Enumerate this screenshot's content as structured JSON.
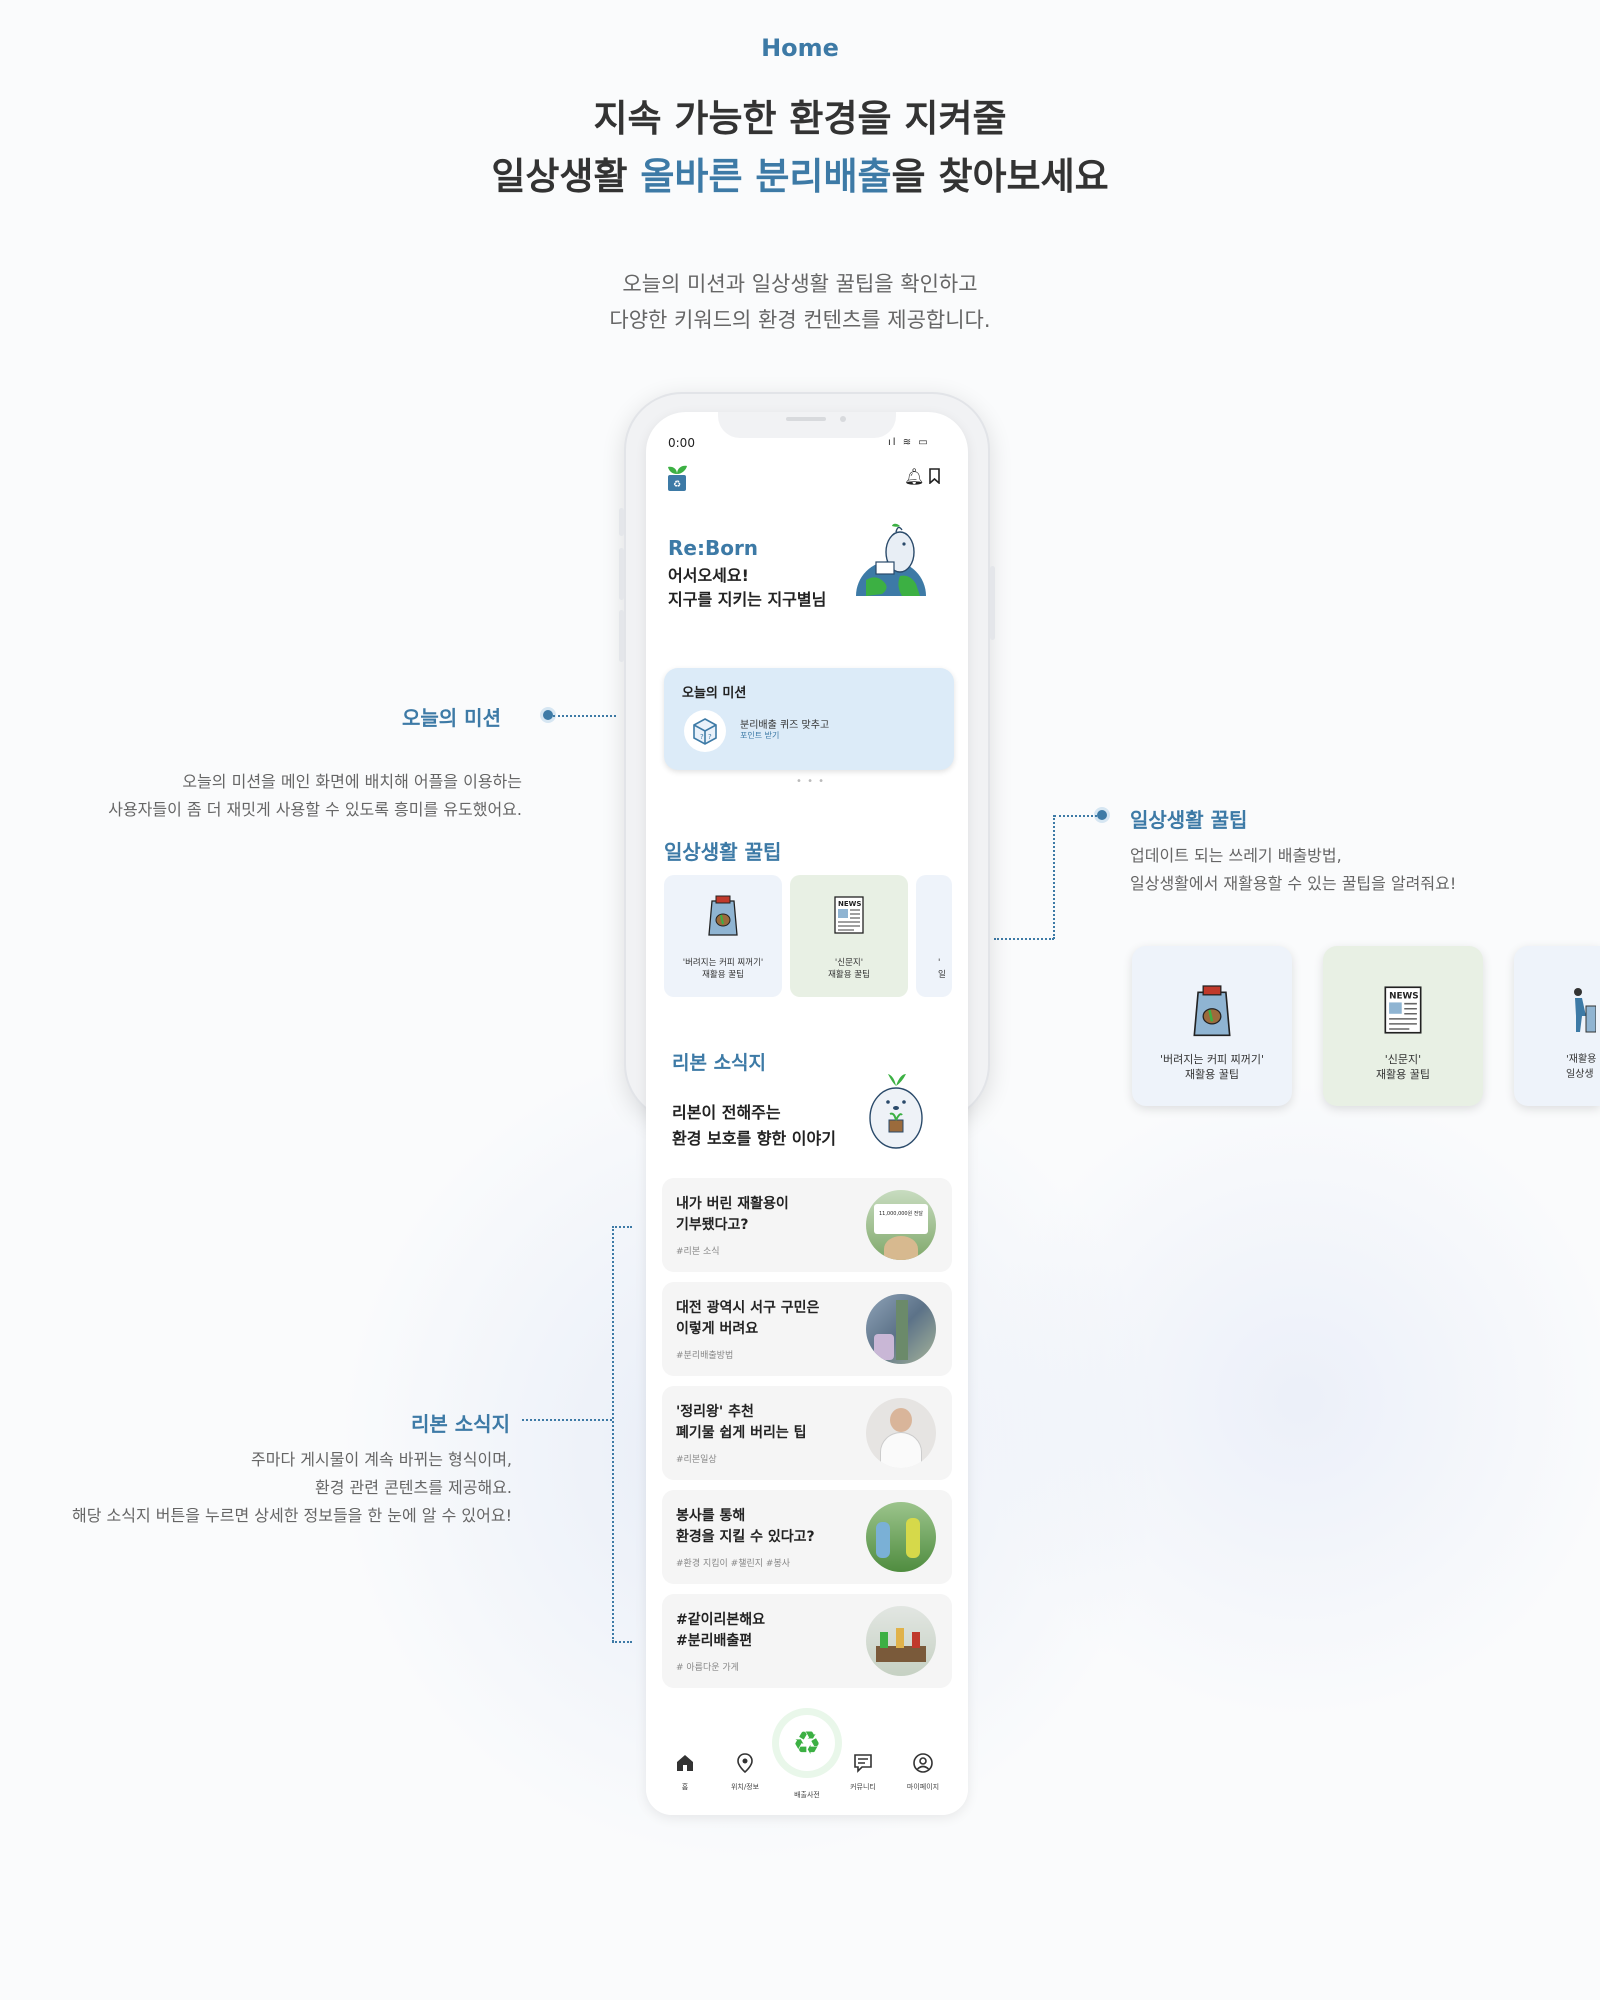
{
  "header": {
    "section_label": "Home",
    "headline_line1": "지속 가능한 환경을 지켜줄",
    "headline_line2_pre": "일상생활 ",
    "headline_line2_accent": "올바른 분리배출",
    "headline_line2_post": "을 찾아보세요",
    "sub_line1": "오늘의 미션과 일상생활 꿀팁을 확인하고",
    "sub_line2": "다양한 키워드의 환경 컨텐츠를 제공합니다."
  },
  "annotations": {
    "mission": {
      "title": "오늘의 미션",
      "desc_line1": "오늘의 미션을 메인 화면에 배치해 어플을 이용하는",
      "desc_line2": "사용자들이 좀 더 재밋게 사용할 수 있도록 흥미를 유도했어요."
    },
    "tips": {
      "title": "일상생활 꿀팁",
      "desc_line1": "업데이트 되는 쓰레기 배출방법,",
      "desc_line2": "일상생활에서  재활용할 수 있는 꿀팁을 알려줘요!"
    },
    "news": {
      "title": "리본 소식지",
      "desc_line1": "주마다 게시물이 계속 바뀌는 형식이며,",
      "desc_line2": "환경 관련 콘텐츠를 제공해요.",
      "desc_line3": "해당 소식지 버튼을 누르면 상세한 정보들을 한 눈에 알 수 있어요!"
    }
  },
  "phone": {
    "status_time": "0:00",
    "status_icons": "ıl ≋ ▭",
    "brand": "Re:Born",
    "greeting_line1": "어서오세요!",
    "greeting_line2": "지구를 지키는 지구별님",
    "mission": {
      "title": "오늘의 미션",
      "line1": "분리배출 퀴즈 맞추고",
      "line2": "포인트 받기",
      "pager": "• • •"
    },
    "tips_title": "일상생활 꿀팁",
    "tips": [
      {
        "line1": "'버려지는 커피 찌꺼기'",
        "line2": "재활용 꿀팁"
      },
      {
        "line1": "'신문지'",
        "line2": "재활용  꿀팁"
      },
      {
        "line1": "'",
        "line2": "일"
      }
    ],
    "news_title": "리본 소식지",
    "news_sub_line1": "리본이 전해주는",
    "news_sub_line2": "환경 보호를 향한 이야기",
    "news": [
      {
        "title_line1": "내가 버린 재활용이",
        "title_line2": "기부됐다고?",
        "tag": "#리본 소식",
        "thumb_text": "11,000,000원 전달"
      },
      {
        "title_line1": "대전 광역시 서구 구민은",
        "title_line2": "이렇게 버려요",
        "tag": "#분리배출방법"
      },
      {
        "title_line1": "'정리왕' 추천",
        "title_line2": "폐기물 쉽게 버리는 팁",
        "tag": "#리본일상"
      },
      {
        "title_line1": "봉사를 통해",
        "title_line2": "환경을 지킬 수 있다고?",
        "tag": "#환경 지킴이 #챌린지  #봉사"
      },
      {
        "title_line1": "#같이리본해요",
        "title_line2": "#분리배출편",
        "tag": "# 아름다운 가게"
      }
    ],
    "tabs": [
      {
        "label": "홈",
        "icon": "home-icon"
      },
      {
        "label": "위치/정보",
        "icon": "location-pin-icon"
      },
      {
        "label": "배출사전",
        "icon": "recycle-icon"
      },
      {
        "label": "커뮤니티",
        "icon": "chat-icon"
      },
      {
        "label": "마이페이지",
        "icon": "user-icon"
      }
    ]
  },
  "enlarged_tips": [
    {
      "line1": "'버려지는 커피 찌꺼기'",
      "line2": "재활용 꿀팁"
    },
    {
      "line1": "'신문지'",
      "line2": "재활용  꿀팁"
    },
    {
      "line1": "'재활용",
      "line2": "일상생"
    }
  ],
  "colors": {
    "accent": "#3d7aa6",
    "mission_bg": "#dcebf8",
    "tip_blue_bg": "#eef3fa",
    "tip_green_bg": "#e8f0e4",
    "recycle_green": "#3cb043"
  }
}
